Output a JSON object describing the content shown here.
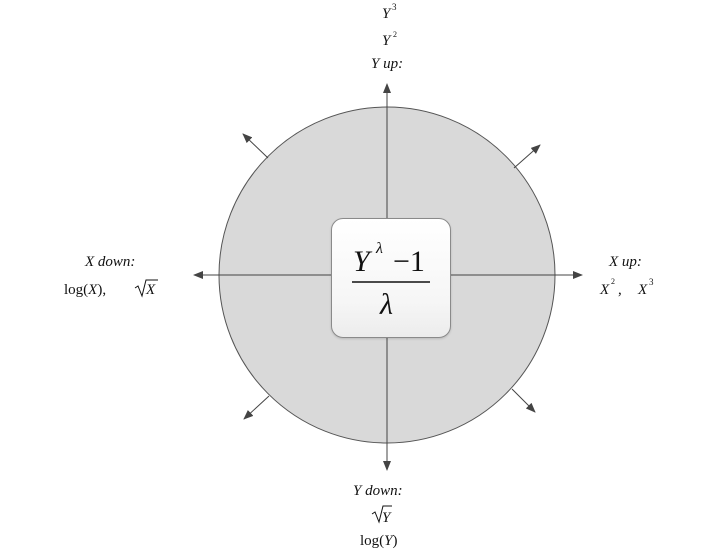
{
  "formula": {
    "numerator_base": "Y",
    "numerator_exponent": "λ",
    "numerator_minus": "−1",
    "denominator": "λ"
  },
  "top": {
    "line1_base": "Y",
    "line1_exp": "3",
    "line2_base": "Y",
    "line2_exp": "2",
    "heading": "Y up:"
  },
  "bottom": {
    "heading": "Y down:",
    "line1": "√Y",
    "line1_radicand": "Y",
    "line2_fn": "log(",
    "line2_arg": "Y",
    "line2_close": ")"
  },
  "left": {
    "heading": "X down:",
    "log_fn": "log(",
    "log_arg": "X",
    "log_close": "),",
    "sqrt_radicand": "X"
  },
  "right": {
    "heading": "X up:",
    "term1_base": "X",
    "term1_exp": "2",
    "term1_sep": ",",
    "term2_base": "X",
    "term2_exp": "3"
  },
  "colors": {
    "circle_fill": "#d9d9d9",
    "circle_stroke": "#555555",
    "axis": "#444444"
  }
}
